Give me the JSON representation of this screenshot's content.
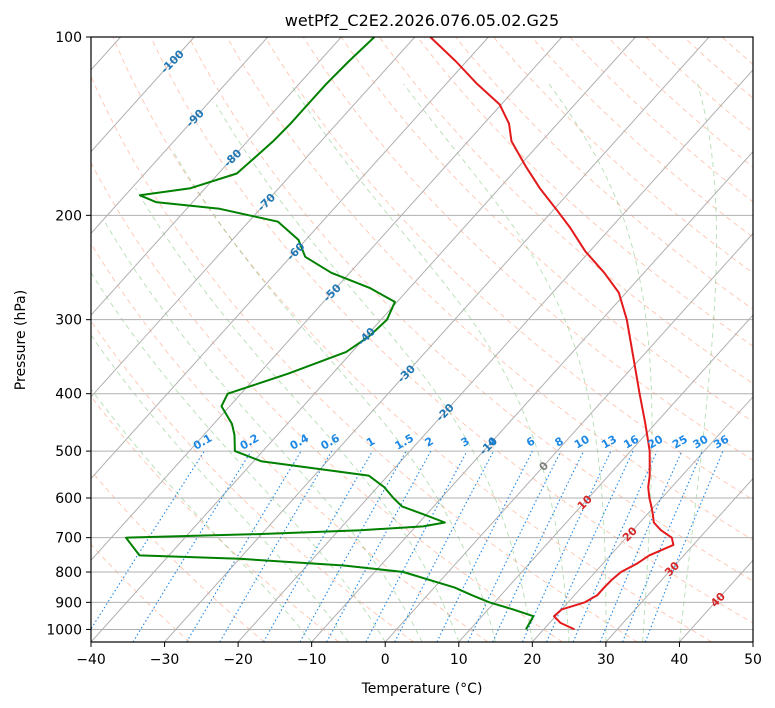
{
  "chart_data": {
    "type": "line",
    "chart_kind": "skew-T log-P",
    "title": "wetPf2_C2E2.2026.076.05.02.G25",
    "xlabel": "Temperature (°C)",
    "ylabel": "Pressure (hPa)",
    "xlim": [
      -40,
      50
    ],
    "ylim": [
      1050,
      100
    ],
    "y_scale": "log",
    "x_ticks": [
      "−40",
      "−30",
      "−20",
      "−10",
      "0",
      "10",
      "20",
      "30",
      "40",
      "50"
    ],
    "x_tick_values": [
      -40,
      -30,
      -20,
      -10,
      0,
      10,
      20,
      30,
      40,
      50
    ],
    "y_ticks": [
      "100",
      "200",
      "300",
      "400",
      "500",
      "600",
      "700",
      "800",
      "900",
      "1000"
    ],
    "y_tick_values": [
      100,
      200,
      300,
      400,
      500,
      600,
      700,
      800,
      900,
      1000
    ],
    "grid": true,
    "series": [
      {
        "role": "temperature",
        "color": "#e31a1c",
        "points": [
          [
            1000,
            24.2
          ],
          [
            975,
            21.5
          ],
          [
            950,
            19.8
          ],
          [
            925,
            20.0
          ],
          [
            900,
            22.3
          ],
          [
            875,
            23.1
          ],
          [
            850,
            23.1
          ],
          [
            825,
            23.2
          ],
          [
            800,
            23.5
          ],
          [
            775,
            24.6
          ],
          [
            750,
            25.3
          ],
          [
            735,
            26.3
          ],
          [
            720,
            27.3
          ],
          [
            700,
            26.2
          ],
          [
            680,
            23.8
          ],
          [
            660,
            21.9
          ],
          [
            640,
            20.8
          ],
          [
            620,
            19.6
          ],
          [
            600,
            18.3
          ],
          [
            575,
            16.8
          ],
          [
            550,
            15.6
          ],
          [
            500,
            12.6
          ],
          [
            450,
            8.7
          ],
          [
            400,
            4.2
          ],
          [
            350,
            -0.8
          ],
          [
            300,
            -6.6
          ],
          [
            270,
            -11.0
          ],
          [
            250,
            -15.4
          ],
          [
            230,
            -20.6
          ],
          [
            210,
            -25.5
          ],
          [
            195,
            -29.8
          ],
          [
            180,
            -34.5
          ],
          [
            165,
            -39.2
          ],
          [
            150,
            -44.1
          ],
          [
            140,
            -46.6
          ],
          [
            130,
            -50.2
          ],
          [
            120,
            -55.8
          ],
          [
            110,
            -61.4
          ],
          [
            100,
            -67.9
          ]
        ]
      },
      {
        "role": "dewpoint",
        "color": "#008000",
        "points": [
          [
            1000,
            17.6
          ],
          [
            975,
            17.3
          ],
          [
            950,
            17.0
          ],
          [
            925,
            13.4
          ],
          [
            900,
            9.3
          ],
          [
            875,
            6.0
          ],
          [
            850,
            2.8
          ],
          [
            800,
            -6.1
          ],
          [
            780,
            -15.0
          ],
          [
            760,
            -30.0
          ],
          [
            750,
            -44.0
          ],
          [
            700,
            -48.0
          ],
          [
            690,
            -30.0
          ],
          [
            680,
            -17.0
          ],
          [
            670,
            -9.0
          ],
          [
            660,
            -6.5
          ],
          [
            640,
            -10.3
          ],
          [
            620,
            -14.3
          ],
          [
            600,
            -16.5
          ],
          [
            575,
            -19.1
          ],
          [
            550,
            -22.6
          ],
          [
            520,
            -39.0
          ],
          [
            500,
            -43.8
          ],
          [
            470,
            -45.8
          ],
          [
            450,
            -47.5
          ],
          [
            420,
            -51.1
          ],
          [
            400,
            -51.8
          ],
          [
            370,
            -46.0
          ],
          [
            340,
            -40.8
          ],
          [
            320,
            -39.6
          ],
          [
            300,
            -39.2
          ],
          [
            280,
            -40.3
          ],
          [
            265,
            -45.5
          ],
          [
            250,
            -52.5
          ],
          [
            235,
            -58.0
          ],
          [
            220,
            -61.0
          ],
          [
            205,
            -66.0
          ],
          [
            195,
            -75.5
          ],
          [
            190,
            -85.0
          ],
          [
            185,
            -88.0
          ],
          [
            180,
            -82.0
          ],
          [
            170,
            -77.5
          ],
          [
            160,
            -77.0
          ],
          [
            150,
            -76.5
          ],
          [
            140,
            -76.3
          ],
          [
            130,
            -76.3
          ],
          [
            120,
            -76.3
          ],
          [
            110,
            -76.0
          ],
          [
            100,
            -75.5
          ]
        ]
      }
    ],
    "isotherm_labels": [
      "-100",
      "-90",
      "-80",
      "-70",
      "-60",
      "-50",
      "-40",
      "-30",
      "-20",
      "-10",
      "0",
      "10",
      "20",
      "30",
      "40"
    ],
    "mixing_ratio_labels": [
      "0.1",
      "0.2",
      "0.4",
      "0.6",
      "1",
      "1.5",
      "2",
      "3",
      "4",
      "6",
      "8",
      "10",
      "13",
      "16",
      "20",
      "25",
      "30",
      "36"
    ],
    "colors": {
      "isotherm_cold": "#1f77b4",
      "isotherm_zero": "#7f7f7f",
      "isotherm_warm": "#d62728",
      "mixing_ratio": "#1e88e5",
      "dry_adiabat": "#ff7f50",
      "moist_adiabat": "#2ca02c",
      "grid": "#b0b0b0"
    }
  }
}
